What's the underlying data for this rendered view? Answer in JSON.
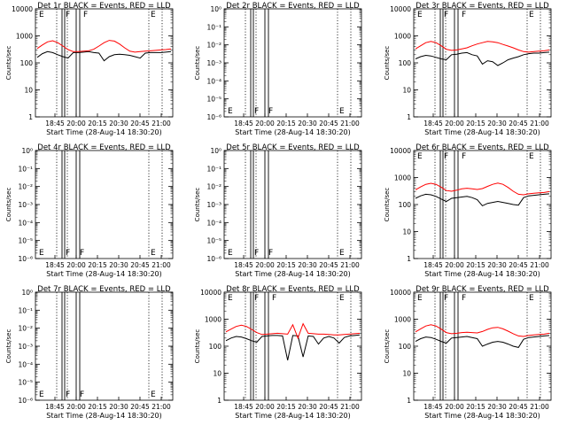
{
  "figure": {
    "background": "#ffffff",
    "event_color": "#000000",
    "lld_color": "#ff0000"
  },
  "chart_data": [
    {
      "type": "line",
      "panel": 1,
      "title": "Det 1r  BLACK = Events, RED = LLD",
      "xlabel": "Start Time (28-Aug-14 18:30:20)",
      "ylabel": "Counts/sec",
      "y_scale": "log",
      "ylim": [
        1,
        10000
      ],
      "y_tick_labels": [
        "1",
        "10",
        "100",
        "1000",
        "10000"
      ],
      "x_tick_labels": [
        "18:45",
        "20:00",
        "20:15",
        "20:30",
        "20:45",
        "21:00"
      ],
      "time_markers": [
        "E",
        "F",
        "F",
        "E"
      ],
      "series": [
        {
          "color": "#000000",
          "values": [
            160,
            220,
            260,
            240,
            200,
            170,
            150,
            240,
            240,
            250,
            260,
            240,
            230,
            120,
            170,
            200,
            210,
            200,
            190,
            170,
            150,
            230,
            240,
            240,
            240,
            250,
            260
          ]
        },
        {
          "color": "#ff0000",
          "values": [
            340,
            460,
            600,
            660,
            560,
            420,
            310,
            260,
            260,
            270,
            280,
            320,
            420,
            560,
            680,
            640,
            500,
            360,
            270,
            250,
            260,
            270,
            280,
            290,
            300,
            310,
            330
          ]
        }
      ]
    },
    {
      "type": "line",
      "panel": 2,
      "title": "Det 2r  BLACK = Events, RED = LLD",
      "xlabel": "Start Time (28-Aug-14 18:30:20)",
      "ylabel": "Counts/sec",
      "y_scale": "log",
      "y_tick_labels": [
        "10⁻⁶",
        "10⁻⁵",
        "10⁻⁴",
        "10⁻³",
        "10⁻²",
        "10⁻¹",
        "10⁰"
      ],
      "x_tick_labels": [
        "18:45",
        "20:00",
        "20:15",
        "20:30",
        "20:45",
        "21:00"
      ],
      "time_markers": [
        "E",
        "F",
        "F",
        "E"
      ],
      "series": []
    },
    {
      "type": "line",
      "panel": 3,
      "title": "Det 3r  BLACK = Events, RED = LLD",
      "xlabel": "Start Time (28-Aug-14 18:30:20)",
      "ylabel": "Counts/sec",
      "y_scale": "log",
      "ylim": [
        1,
        10000
      ],
      "y_tick_labels": [
        "1",
        "10",
        "100",
        "1000",
        "10000"
      ],
      "x_tick_labels": [
        "18:45",
        "20:00",
        "20:15",
        "20:30",
        "20:45",
        "21:00"
      ],
      "time_markers": [
        "E",
        "F",
        "F",
        "E"
      ],
      "series": [
        {
          "color": "#000000",
          "values": [
            140,
            170,
            190,
            180,
            160,
            140,
            130,
            200,
            210,
            230,
            240,
            200,
            180,
            90,
            120,
            110,
            80,
            100,
            130,
            150,
            170,
            200,
            220,
            230,
            230,
            240,
            250
          ]
        },
        {
          "color": "#ff0000",
          "values": [
            330,
            430,
            560,
            620,
            560,
            430,
            320,
            290,
            300,
            330,
            360,
            430,
            500,
            560,
            620,
            600,
            560,
            480,
            420,
            360,
            300,
            260,
            250,
            260,
            270,
            280,
            300
          ]
        }
      ]
    },
    {
      "type": "line",
      "panel": 4,
      "title": "Det 4r  BLACK = Events, RED = LLD",
      "xlabel": "Start Time (28-Aug-14 18:30:20)",
      "ylabel": "Counts/sec",
      "y_scale": "log",
      "y_tick_labels": [
        "10⁻⁶",
        "10⁻⁵",
        "10⁻⁴",
        "10⁻³",
        "10⁻²",
        "10⁻¹",
        "10⁰"
      ],
      "x_tick_labels": [
        "18:45",
        "20:00",
        "20:15",
        "20:30",
        "20:45",
        "21:00"
      ],
      "time_markers": [
        "E",
        "F",
        "F",
        "E"
      ],
      "series": []
    },
    {
      "type": "line",
      "panel": 5,
      "title": "Det 5r  BLACK = Events, RED = LLD",
      "xlabel": "Start Time (28-Aug-14 18:30:20)",
      "ylabel": "Counts/sec",
      "y_scale": "log",
      "y_tick_labels": [
        "10⁻⁶",
        "10⁻⁵",
        "10⁻⁴",
        "10⁻³",
        "10⁻²",
        "10⁻¹",
        "10⁰"
      ],
      "x_tick_labels": [
        "18:45",
        "20:00",
        "20:15",
        "20:30",
        "20:45",
        "21:00"
      ],
      "time_markers": [
        "E",
        "F",
        "F",
        "E"
      ],
      "series": []
    },
    {
      "type": "line",
      "panel": 6,
      "title": "Det 6r  BLACK = Events, RED = LLD",
      "xlabel": "Start Time (28-Aug-14 18:30:20)",
      "ylabel": "Counts/sec",
      "y_scale": "log",
      "ylim": [
        1,
        10000
      ],
      "y_tick_labels": [
        "1",
        "10",
        "100",
        "1000",
        "10000"
      ],
      "x_tick_labels": [
        "18:45",
        "20:00",
        "20:15",
        "20:30",
        "20:45",
        "21:00"
      ],
      "time_markers": [
        "E",
        "F",
        "F",
        "E"
      ],
      "series": [
        {
          "color": "#000000",
          "values": [
            170,
            210,
            240,
            230,
            200,
            160,
            130,
            170,
            180,
            190,
            200,
            180,
            150,
            90,
            110,
            120,
            130,
            120,
            110,
            100,
            95,
            180,
            210,
            220,
            230,
            240,
            250
          ]
        },
        {
          "color": "#ff0000",
          "values": [
            350,
            450,
            560,
            610,
            560,
            440,
            330,
            310,
            340,
            380,
            400,
            380,
            360,
            390,
            470,
            560,
            620,
            560,
            430,
            310,
            240,
            230,
            250,
            260,
            270,
            280,
            300
          ]
        }
      ]
    },
    {
      "type": "line",
      "panel": 7,
      "title": "Det 7r  BLACK = Events, RED = LLD",
      "xlabel": "Start Time (28-Aug-14 18:30:20)",
      "ylabel": "Counts/sec",
      "y_scale": "log",
      "y_tick_labels": [
        "10⁻⁶",
        "10⁻⁵",
        "10⁻⁴",
        "10⁻³",
        "10⁻²",
        "10⁻¹",
        "10⁰"
      ],
      "x_tick_labels": [
        "18:45",
        "20:00",
        "20:15",
        "20:30",
        "20:45",
        "21:00"
      ],
      "time_markers": [
        "E",
        "F",
        "F",
        "E"
      ],
      "series": []
    },
    {
      "type": "line",
      "panel": 8,
      "title": "Det 8r  BLACK = Events, RED = LLD",
      "xlabel": "Start Time (28-Aug-14 18:30:20)",
      "ylabel": "Counts/sec",
      "y_scale": "log",
      "ylim": [
        1,
        10000
      ],
      "y_tick_labels": [
        "1",
        "10",
        "100",
        "1000",
        "10000"
      ],
      "x_tick_labels": [
        "18:45",
        "20:00",
        "20:15",
        "20:30",
        "20:45",
        "21:00"
      ],
      "time_markers": [
        "E",
        "F",
        "F",
        "E"
      ],
      "series": [
        {
          "color": "#000000",
          "values": [
            160,
            200,
            230,
            220,
            190,
            160,
            140,
            230,
            240,
            250,
            250,
            240,
            30,
            250,
            240,
            40,
            240,
            230,
            120,
            200,
            230,
            200,
            130,
            210,
            240,
            250,
            260
          ]
        },
        {
          "color": "#ff0000",
          "values": [
            340,
            430,
            540,
            600,
            540,
            420,
            320,
            270,
            280,
            290,
            300,
            290,
            280,
            620,
            200,
            680,
            300,
            290,
            280,
            280,
            270,
            260,
            260,
            270,
            280,
            290,
            300
          ]
        }
      ]
    },
    {
      "type": "line",
      "panel": 9,
      "title": "Det 9r  BLACK = Events, RED = LLD",
      "xlabel": "Start Time (28-Aug-14 18:30:20)",
      "ylabel": "Counts/sec",
      "y_scale": "log",
      "ylim": [
        1,
        10000
      ],
      "y_tick_labels": [
        "1",
        "10",
        "100",
        "1000",
        "10000"
      ],
      "x_tick_labels": [
        "18:45",
        "20:00",
        "20:15",
        "20:30",
        "20:45",
        "21:00"
      ],
      "time_markers": [
        "E",
        "F",
        "F",
        "E"
      ],
      "series": [
        {
          "color": "#000000",
          "values": [
            150,
            190,
            220,
            210,
            180,
            150,
            130,
            200,
            210,
            220,
            230,
            210,
            190,
            100,
            120,
            140,
            150,
            140,
            120,
            100,
            90,
            180,
            210,
            220,
            230,
            240,
            250
          ]
        },
        {
          "color": "#ff0000",
          "values": [
            340,
            440,
            560,
            620,
            560,
            430,
            320,
            290,
            300,
            320,
            330,
            320,
            310,
            350,
            420,
            480,
            500,
            440,
            360,
            290,
            240,
            230,
            250,
            260,
            270,
            280,
            300
          ]
        }
      ]
    }
  ]
}
